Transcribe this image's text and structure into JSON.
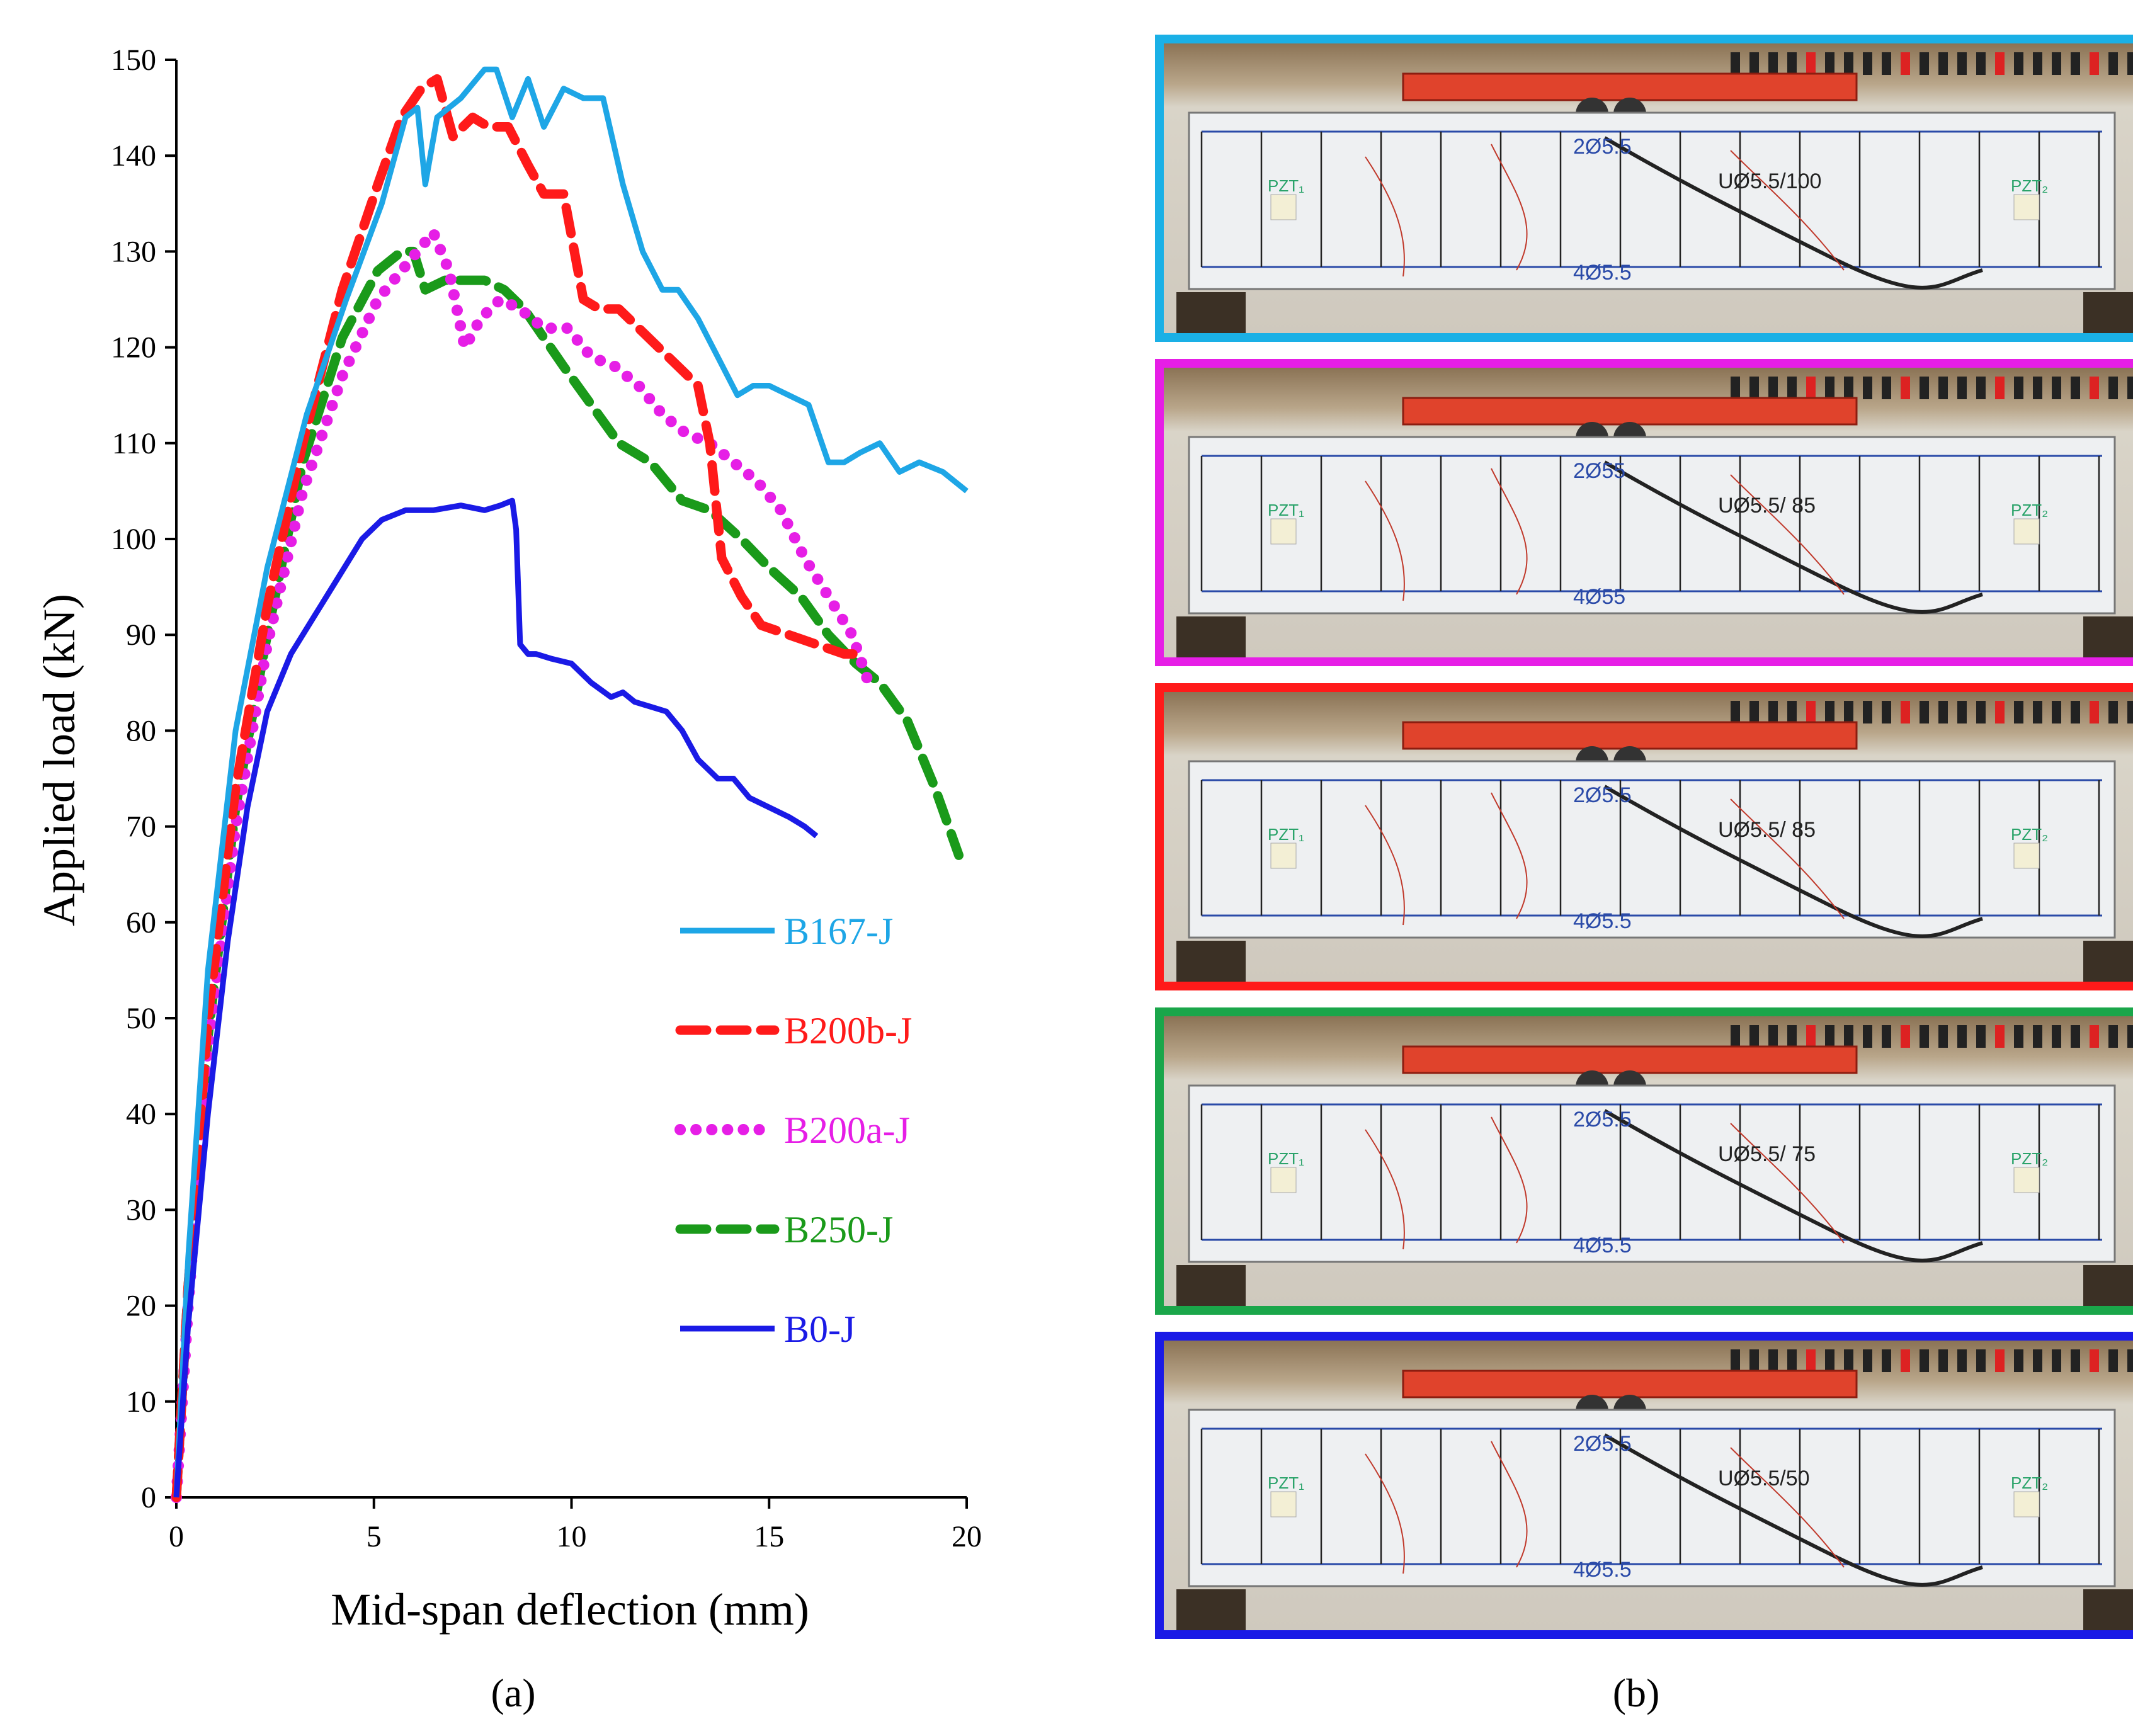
{
  "chart_data": {
    "type": "line",
    "panel_label": "(a)",
    "xlabel": "Mid-span deflection (mm)",
    "ylabel": "Applied load (kN)",
    "xlim": [
      0,
      20
    ],
    "ylim": [
      0,
      150
    ],
    "xticks": [
      0,
      5,
      10,
      15,
      20
    ],
    "yticks": [
      0,
      10,
      20,
      30,
      40,
      50,
      60,
      70,
      80,
      90,
      100,
      110,
      120,
      130,
      140,
      150
    ],
    "legend_position": "lower-right",
    "grid": false,
    "series": [
      {
        "name": "B167-J",
        "color": "#1ea6e6",
        "style": "solid",
        "x": [
          0,
          0.3,
          0.8,
          1.5,
          2.3,
          3.3,
          4.3,
          5.2,
          5.8,
          6.1,
          6.3,
          6.6,
          7.2,
          7.8,
          8.1,
          8.5,
          8.9,
          9.3,
          9.8,
          10.3,
          10.8,
          11.3,
          11.8,
          12.3,
          12.7,
          13.2,
          13.7,
          14.2,
          14.6,
          15.0,
          15.5,
          16.0,
          16.5,
          16.9,
          17.3,
          17.8,
          18.3,
          18.8,
          19.4,
          20.0
        ],
        "values": [
          0,
          25,
          55,
          80,
          97,
          113,
          125,
          135,
          144,
          145,
          137,
          144,
          146,
          149,
          149,
          144,
          148,
          143,
          147,
          146,
          146,
          137,
          130,
          126,
          126,
          123,
          119,
          115,
          116,
          116,
          115,
          114,
          108,
          108,
          109,
          110,
          107,
          108,
          107,
          105
        ]
      },
      {
        "name": "B200b-J",
        "color": "#ff1a1a",
        "style": "dashed",
        "x": [
          0,
          0.3,
          0.8,
          1.5,
          2.3,
          3.2,
          4.2,
          5.1,
          5.7,
          6.2,
          6.6,
          7.0,
          7.5,
          7.9,
          8.4,
          8.9,
          9.3,
          9.8,
          10.3,
          10.7,
          11.2,
          11.7,
          12.2,
          12.7,
          13.2,
          13.5,
          13.8,
          14.3,
          14.8,
          15.5,
          16.2,
          16.9,
          17.2
        ],
        "values": [
          0,
          22,
          50,
          74,
          93,
          110,
          126,
          137,
          144,
          147,
          148,
          142,
          144,
          143,
          143,
          139,
          136,
          136,
          125,
          124,
          124,
          122,
          120,
          118,
          116,
          110,
          98,
          94,
          91,
          90,
          89,
          88,
          88
        ]
      },
      {
        "name": "B200a-J",
        "color": "#e61ee6",
        "style": "dotted",
        "x": [
          0,
          0.3,
          0.8,
          1.5,
          2.3,
          3.2,
          4.2,
          5.1,
          5.7,
          6.1,
          6.5,
          6.9,
          7.3,
          7.7,
          8.2,
          8.7,
          9.3,
          9.9,
          10.5,
          11.1,
          11.7,
          12.3,
          12.9,
          13.5,
          14.1,
          14.7,
          15.3,
          15.9,
          16.5,
          17.1,
          17.6
        ],
        "values": [
          0,
          20,
          47,
          70,
          89,
          105,
          117,
          125,
          128,
          130,
          132,
          128,
          120,
          123,
          125,
          124,
          122,
          122,
          119,
          118,
          116,
          113,
          111,
          110,
          108,
          106,
          103,
          98,
          94,
          90,
          84
        ]
      },
      {
        "name": "B250-J",
        "color": "#1a9a1a",
        "style": "dashed",
        "x": [
          0,
          0.3,
          0.8,
          1.5,
          2.3,
          3.2,
          4.2,
          5.1,
          5.7,
          6.0,
          6.3,
          6.8,
          7.3,
          7.8,
          8.3,
          8.8,
          9.3,
          9.8,
          10.5,
          11.2,
          12.0,
          12.8,
          13.5,
          14.3,
          15.0,
          15.8,
          16.5,
          17.2,
          17.8,
          18.5,
          19.2,
          19.8
        ],
        "values": [
          0,
          22,
          48,
          72,
          90,
          108,
          121,
          128,
          130,
          130,
          126,
          127,
          127,
          127,
          126,
          124,
          121,
          118,
          114,
          110,
          108,
          104,
          103,
          100,
          97,
          94,
          90,
          87,
          85,
          81,
          74,
          67
        ]
      },
      {
        "name": "B0-J",
        "color": "#1a1ae6",
        "style": "solid",
        "x": [
          0,
          0.3,
          0.8,
          1.3,
          1.8,
          2.3,
          2.9,
          3.5,
          4.1,
          4.7,
          5.2,
          5.8,
          6.5,
          7.2,
          7.8,
          8.2,
          8.5,
          8.6,
          8.7,
          8.9,
          9.1,
          9.5,
          10.0,
          10.5,
          11.0,
          11.3,
          11.6,
          12.0,
          12.4,
          12.8,
          13.2,
          13.7,
          14.1,
          14.5,
          15.0,
          15.5,
          15.9,
          16.2
        ],
        "values": [
          0,
          18,
          40,
          58,
          72,
          82,
          88,
          92,
          96,
          100,
          102,
          103,
          103,
          103.5,
          103,
          103.5,
          104,
          101,
          89,
          88,
          88,
          87.5,
          87,
          85,
          83.5,
          84,
          83,
          82.5,
          82,
          80,
          77,
          75,
          75,
          73,
          72,
          71,
          70,
          69
        ]
      }
    ]
  },
  "photo_panel": {
    "label": "(b)",
    "frames": [
      {
        "specimen": "B167-J",
        "border_color": "#1ab0e6",
        "top_bar": "2Ø5.5",
        "stirrup_note": "UØ5.5/100",
        "bottom_bar": "4Ø5.5",
        "sensor_a": "PZT₁",
        "sensor_b": "PZT₂"
      },
      {
        "specimen": "B200a-J",
        "border_color": "#e61ee6",
        "top_bar": "2Ø55",
        "stirrup_note": "UØ5.5/ 85",
        "bottom_bar": "4Ø55",
        "sensor_a": "PZT₁",
        "sensor_b": "PZT₂"
      },
      {
        "specimen": "B200b-J",
        "border_color": "#ff1a1a",
        "top_bar": "2Ø5.5",
        "stirrup_note": "UØ5.5/ 85",
        "bottom_bar": "4Ø5.5",
        "sensor_a": "PZT₁",
        "sensor_b": "PZT₂"
      },
      {
        "specimen": "B250-J",
        "border_color": "#1aa64a",
        "top_bar": "2Ø5.5",
        "stirrup_note": "UØ5.5/ 75",
        "bottom_bar": "4Ø5.5",
        "sensor_a": "PZT₁",
        "sensor_b": "PZT₂"
      },
      {
        "specimen": "B0-J",
        "border_color": "#1a1ae6",
        "top_bar": "2Ø5.5",
        "stirrup_note": "UØ5.5/50",
        "bottom_bar": "4Ø5.5",
        "sensor_a": "PZT₁",
        "sensor_b": "PZT₂"
      }
    ]
  }
}
